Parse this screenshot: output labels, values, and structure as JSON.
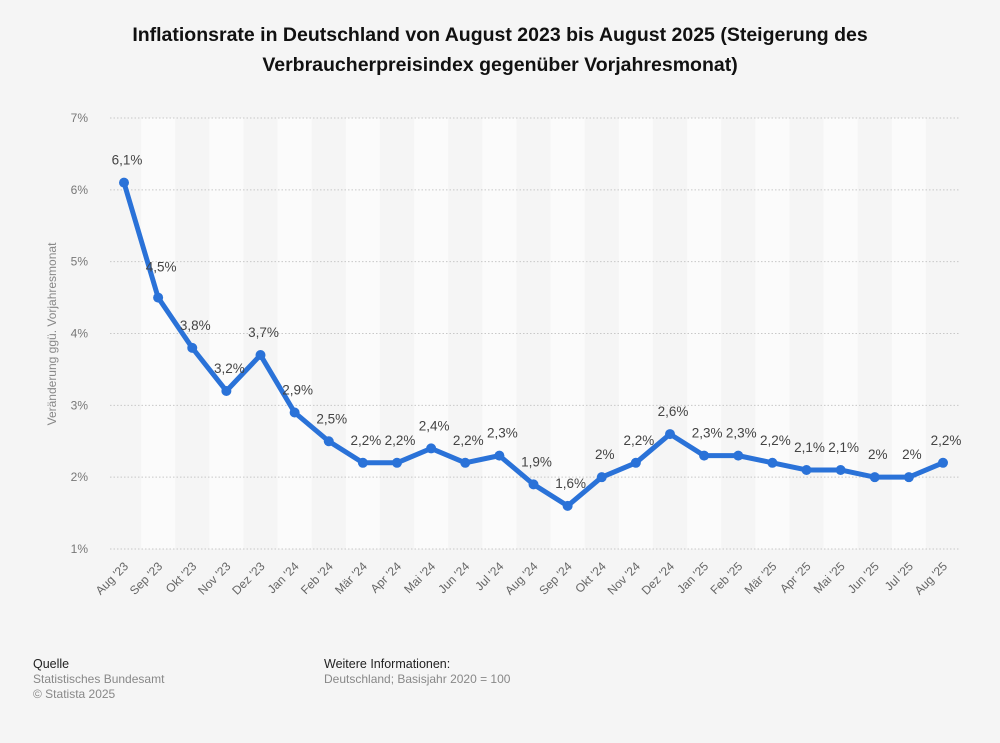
{
  "header": {
    "title_line1": "Inflationsrate in Deutschland von August 2023 bis August 2025 (Steigerung des",
    "title_line2": "Verbraucherpreisindex gegenüber Vorjahresmonat)"
  },
  "chart_data": {
    "type": "line",
    "title": "Inflationsrate in Deutschland von August 2023 bis August 2025 (Steigerung des Verbraucherpreisindex gegenüber Vorjahresmonat)",
    "xlabel": "",
    "ylabel": "Veränderung ggü. Vorjahresmonat",
    "ylim": [
      1,
      7
    ],
    "yticks": [
      1,
      2,
      3,
      4,
      5,
      6,
      7
    ],
    "ytick_labels": [
      "1%",
      "2%",
      "3%",
      "4%",
      "5%",
      "6%",
      "7%"
    ],
    "grid": true,
    "legend": "none",
    "line_color": "#2a72d8",
    "categories": [
      "Aug '23",
      "Sep '23",
      "Okt '23",
      "Nov '23",
      "Dez '23",
      "Jan '24",
      "Feb '24",
      "Mär '24",
      "Apr '24",
      "Mai '24",
      "Jun '24",
      "Jul '24",
      "Aug '24",
      "Sep '24",
      "Okt '24",
      "Nov '24",
      "Dez '24",
      "Jan '25",
      "Feb '25",
      "Mär '25",
      "Apr '25",
      "Mai '25",
      "Jun '25",
      "Jul '25",
      "Aug '25"
    ],
    "series": [
      {
        "name": "Inflationsrate",
        "values": [
          6.1,
          4.5,
          3.8,
          3.2,
          3.7,
          2.9,
          2.5,
          2.2,
          2.2,
          2.4,
          2.2,
          2.3,
          1.9,
          1.6,
          2.0,
          2.2,
          2.6,
          2.3,
          2.3,
          2.2,
          2.1,
          2.1,
          2.0,
          2.0,
          2.2
        ],
        "labels": [
          "6,1%",
          "4,5%",
          "3,8%",
          "3,2%",
          "3,7%",
          "2,9%",
          "2,5%",
          "2,2%",
          "2,2%",
          "2,4%",
          "2,2%",
          "2,3%",
          "1,9%",
          "1,6%",
          "2%",
          "2,2%",
          "2,6%",
          "2,3%",
          "2,3%",
          "2,2%",
          "2,1%",
          "2,1%",
          "2%",
          "2%",
          "2,2%"
        ]
      }
    ]
  },
  "footer": {
    "source_heading": "Quelle",
    "source_text": "Statistisches Bundesamt",
    "copyright": "© Statista 2025",
    "info_heading": "Weitere Informationen:",
    "info_text": "Deutschland; Basisjahr 2020 = 100"
  }
}
